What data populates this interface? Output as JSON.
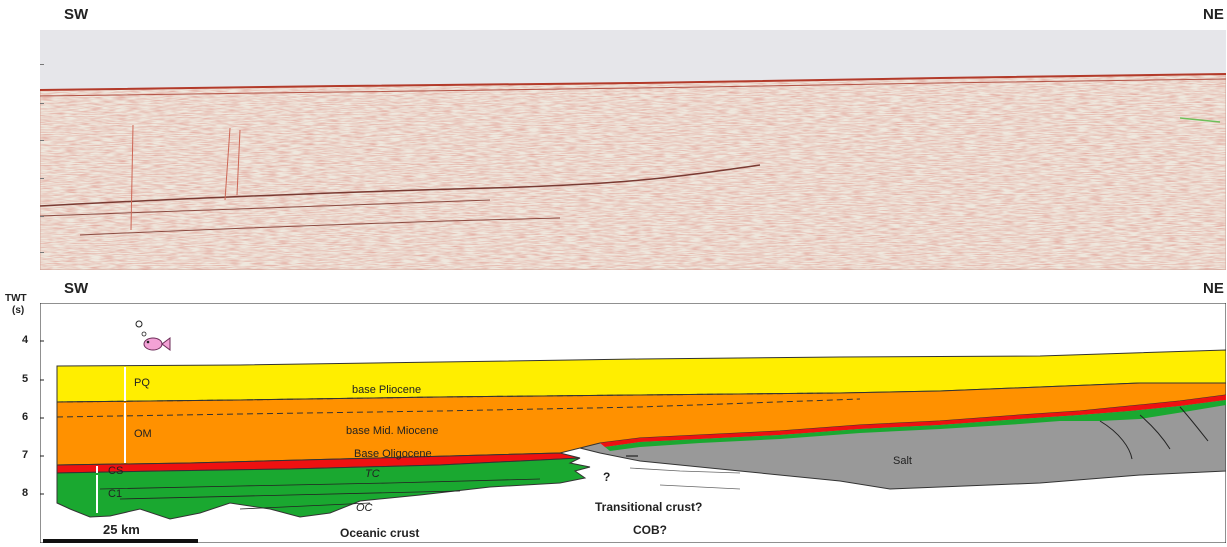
{
  "top_panel": {
    "left_dir": "SW",
    "right_dir": "NE"
  },
  "bottom_panel": {
    "left_dir": "SW",
    "right_dir": "NE",
    "y_axis_label_1": "TWT",
    "y_axis_label_2": "(s)",
    "y_ticks": [
      "4",
      "5",
      "6",
      "7",
      "8"
    ]
  },
  "units": {
    "pq": "PQ",
    "om": "OM",
    "cs": "CS",
    "c1": "C1",
    "tc": "TC",
    "oc": "OC"
  },
  "horizons": {
    "base_pliocene": "base Pliocene",
    "base_mid_miocene": "base Mid. Miocene",
    "base_oligocene": "Base Oligocene"
  },
  "domains": {
    "salt": "Salt",
    "oceanic_crust": "Oceanic crust",
    "transitional_crust": "Transitional crust?",
    "cob": "COB?",
    "question": "?"
  },
  "scale_bar": {
    "label": "25 km"
  },
  "colors": {
    "pliocene_yellow": "#ffee00",
    "miocene_orange": "#ff9100",
    "syn_rift_red": "#ee1111",
    "crust_green": "#1aa830",
    "salt_gray": "#999999",
    "seismic_bg": "#efe8de",
    "water_gray": "#e6e6ea"
  },
  "icons": [
    "fish-icon",
    "bubble-icon"
  ]
}
